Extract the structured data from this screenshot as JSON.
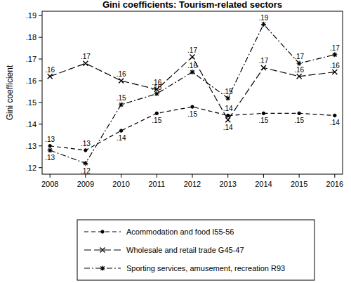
{
  "chart_data": {
    "type": "line",
    "title": "Gini coefficients: Tourism-related sectors",
    "y_label": "Gini coefficient",
    "categories": [
      "2008",
      "2009",
      "2010",
      "2011",
      "2012",
      "2013",
      "2014",
      "2015",
      "2016"
    ],
    "ylim": [
      0.117,
      0.192
    ],
    "yticks": [
      {
        "value": 0.12,
        "label": ".12"
      },
      {
        "value": 0.13,
        "label": ".13"
      },
      {
        "value": 0.14,
        "label": ".14"
      },
      {
        "value": 0.15,
        "label": ".15"
      },
      {
        "value": 0.16,
        "label": ".16"
      },
      {
        "value": 0.17,
        "label": ".17"
      },
      {
        "value": 0.18,
        "label": ".18"
      },
      {
        "value": 0.19,
        "label": ".19"
      }
    ],
    "grid": false,
    "data_labels": true,
    "legend": "bottom",
    "series": [
      {
        "name": "Acommodation and food I55-56",
        "color": "#000000",
        "marker": "circle",
        "line_style": "dashed",
        "values": [
          0.13,
          0.128,
          0.137,
          0.145,
          0.148,
          0.144,
          0.145,
          0.145,
          0.144
        ],
        "value_labels": [
          ".13",
          ".13",
          ".14",
          ".15",
          ".15",
          ".14",
          ".15",
          ".15",
          ".14"
        ]
      },
      {
        "name": "Wholesale and retail trade G45-47",
        "color": "#000000",
        "marker": "x",
        "line_style": "longdash",
        "values": [
          0.162,
          0.168,
          0.16,
          0.156,
          0.171,
          0.142,
          0.166,
          0.162,
          0.164
        ],
        "value_labels": [
          ".16",
          ".17",
          ".16",
          ".16",
          ".17",
          ".14",
          ".17",
          ".16",
          ".16"
        ]
      },
      {
        "name": "Sporting services, amusement, recreation R93",
        "color": "#000000",
        "marker": "asterisk",
        "line_style": "dashdot",
        "values": [
          0.128,
          0.122,
          0.149,
          0.154,
          0.164,
          0.152,
          0.186,
          0.168,
          0.172
        ],
        "value_labels": [
          ".13",
          ".12",
          ".15",
          ".15",
          ".16",
          ".15",
          ".19",
          ".17",
          ".17"
        ]
      }
    ]
  }
}
